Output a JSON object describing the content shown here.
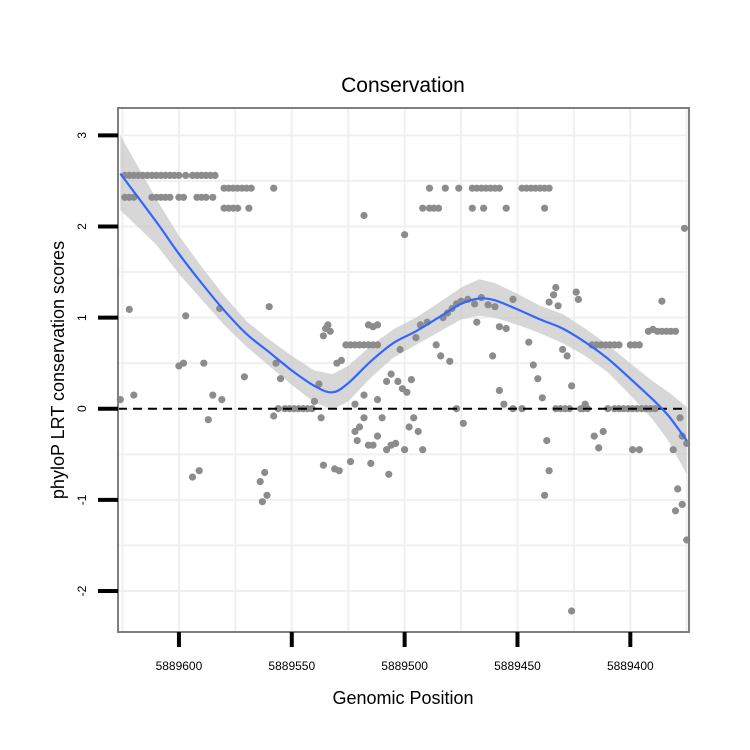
{
  "chart_data": {
    "type": "scatter",
    "title": "Conservation",
    "xlabel": "Genomic Position",
    "ylabel": "phyloP LRT conservation scores",
    "x_reversed": true,
    "xlim": [
      5889627,
      5889374
    ],
    "ylim": [
      -2.45,
      3.3
    ],
    "x_ticks": [
      5889600,
      5889550,
      5889500,
      5889450,
      5889400
    ],
    "x_tick_labels": [
      "5889600",
      "5889550",
      "5889500",
      "5889450",
      "5889400"
    ],
    "y_ticks": [
      -2,
      -1,
      0,
      1,
      2,
      3
    ],
    "y_tick_labels": [
      "-2",
      "-1",
      "0",
      "1",
      "2",
      "3"
    ],
    "reference_line": 0,
    "grid": true,
    "colors": {
      "points": "#8c8c8c",
      "smooth": "#3366ff",
      "ribbon": "#c9c9c9",
      "panel_border": "#7f7f7f",
      "grid": "#f0f0f0",
      "hline": "#000000"
    },
    "points": [
      {
        "x": 5889600,
        "y": 2.56
      },
      {
        "x": 5889597,
        "y": 2.56
      },
      {
        "x": 5889594,
        "y": 2.56
      },
      {
        "x": 5889592,
        "y": 2.56
      },
      {
        "x": 5889590,
        "y": 2.56
      },
      {
        "x": 5889588,
        "y": 2.56
      },
      {
        "x": 5889586,
        "y": 2.56
      },
      {
        "x": 5889584,
        "y": 2.56
      },
      {
        "x": 5889616,
        "y": 2.56
      },
      {
        "x": 5889614,
        "y": 2.56
      },
      {
        "x": 5889612,
        "y": 2.56
      },
      {
        "x": 5889610,
        "y": 2.56
      },
      {
        "x": 5889608,
        "y": 2.56
      },
      {
        "x": 5889606,
        "y": 2.56
      },
      {
        "x": 5889604,
        "y": 2.56
      },
      {
        "x": 5889602,
        "y": 2.56
      },
      {
        "x": 5889624,
        "y": 2.56
      },
      {
        "x": 5889622,
        "y": 2.56
      },
      {
        "x": 5889620,
        "y": 2.56
      },
      {
        "x": 5889618,
        "y": 2.56
      },
      {
        "x": 5889624,
        "y": 2.32
      },
      {
        "x": 5889622,
        "y": 2.32
      },
      {
        "x": 5889620,
        "y": 2.32
      },
      {
        "x": 5889612,
        "y": 2.32
      },
      {
        "x": 5889610,
        "y": 2.32
      },
      {
        "x": 5889608,
        "y": 2.32
      },
      {
        "x": 5889606,
        "y": 2.32
      },
      {
        "x": 5889604,
        "y": 2.32
      },
      {
        "x": 5889600,
        "y": 2.32
      },
      {
        "x": 5889598,
        "y": 2.32
      },
      {
        "x": 5889592,
        "y": 2.32
      },
      {
        "x": 5889590,
        "y": 2.32
      },
      {
        "x": 5889588,
        "y": 2.32
      },
      {
        "x": 5889585,
        "y": 2.32
      },
      {
        "x": 5889580,
        "y": 2.42
      },
      {
        "x": 5889578,
        "y": 2.42
      },
      {
        "x": 5889576,
        "y": 2.42
      },
      {
        "x": 5889574,
        "y": 2.42
      },
      {
        "x": 5889572,
        "y": 2.42
      },
      {
        "x": 5889570,
        "y": 2.42
      },
      {
        "x": 5889568,
        "y": 2.42
      },
      {
        "x": 5889558,
        "y": 2.42
      },
      {
        "x": 5889580,
        "y": 2.2
      },
      {
        "x": 5889578,
        "y": 2.2
      },
      {
        "x": 5889576,
        "y": 2.2
      },
      {
        "x": 5889574,
        "y": 2.2
      },
      {
        "x": 5889569,
        "y": 2.2
      },
      {
        "x": 5889518,
        "y": 2.12
      },
      {
        "x": 5889500,
        "y": 1.91
      },
      {
        "x": 5889492,
        "y": 2.2
      },
      {
        "x": 5889489,
        "y": 2.2
      },
      {
        "x": 5889487,
        "y": 2.2
      },
      {
        "x": 5889485,
        "y": 2.2
      },
      {
        "x": 5889470,
        "y": 2.2
      },
      {
        "x": 5889465,
        "y": 2.2
      },
      {
        "x": 5889455,
        "y": 2.2
      },
      {
        "x": 5889438,
        "y": 2.2
      },
      {
        "x": 5889489,
        "y": 2.42
      },
      {
        "x": 5889482,
        "y": 2.42
      },
      {
        "x": 5889476,
        "y": 2.42
      },
      {
        "x": 5889470,
        "y": 2.42
      },
      {
        "x": 5889468,
        "y": 2.42
      },
      {
        "x": 5889466,
        "y": 2.42
      },
      {
        "x": 5889464,
        "y": 2.42
      },
      {
        "x": 5889462,
        "y": 2.42
      },
      {
        "x": 5889460,
        "y": 2.42
      },
      {
        "x": 5889458,
        "y": 2.42
      },
      {
        "x": 5889448,
        "y": 2.42
      },
      {
        "x": 5889446,
        "y": 2.42
      },
      {
        "x": 5889444,
        "y": 2.42
      },
      {
        "x": 5889442,
        "y": 2.42
      },
      {
        "x": 5889440,
        "y": 2.42
      },
      {
        "x": 5889438,
        "y": 2.42
      },
      {
        "x": 5889436,
        "y": 2.42
      },
      {
        "x": 5889622,
        "y": 1.09
      },
      {
        "x": 5889597,
        "y": 1.02
      },
      {
        "x": 5889589,
        "y": 0.5
      },
      {
        "x": 5889582,
        "y": 1.1
      },
      {
        "x": 5889571,
        "y": 0.35
      },
      {
        "x": 5889560,
        "y": 1.12
      },
      {
        "x": 5889557,
        "y": 0.5
      },
      {
        "x": 5889555,
        "y": 0.33
      },
      {
        "x": 5889600,
        "y": 0.47
      },
      {
        "x": 5889598,
        "y": 0.5
      },
      {
        "x": 5889626,
        "y": 0.1
      },
      {
        "x": 5889620,
        "y": 0.15
      },
      {
        "x": 5889585,
        "y": 0.15
      },
      {
        "x": 5889581,
        "y": 0.1
      },
      {
        "x": 5889587,
        "y": -0.12
      },
      {
        "x": 5889558,
        "y": -0.08
      },
      {
        "x": 5889556,
        "y": 0.0
      },
      {
        "x": 5889553,
        "y": 0.0
      },
      {
        "x": 5889551,
        "y": 0.0
      },
      {
        "x": 5889549,
        "y": 0.0
      },
      {
        "x": 5889547,
        "y": 0.0
      },
      {
        "x": 5889545,
        "y": 0.0
      },
      {
        "x": 5889543,
        "y": 0.0
      },
      {
        "x": 5889541,
        "y": 0.0
      },
      {
        "x": 5889540,
        "y": 0.08
      },
      {
        "x": 5889538,
        "y": 0.27
      },
      {
        "x": 5889537,
        "y": -0.1
      },
      {
        "x": 5889564,
        "y": -0.8
      },
      {
        "x": 5889562,
        "y": -0.7
      },
      {
        "x": 5889561,
        "y": -0.95
      },
      {
        "x": 5889563,
        "y": -1.02
      },
      {
        "x": 5889594,
        "y": -0.75
      },
      {
        "x": 5889591,
        "y": -0.68
      },
      {
        "x": 5889536,
        "y": 0.8
      },
      {
        "x": 5889535,
        "y": 0.88
      },
      {
        "x": 5889534,
        "y": 0.92
      },
      {
        "x": 5889533,
        "y": 0.85
      },
      {
        "x": 5889530,
        "y": 0.5
      },
      {
        "x": 5889528,
        "y": 0.53
      },
      {
        "x": 5889526,
        "y": 0.7
      },
      {
        "x": 5889524,
        "y": 0.7
      },
      {
        "x": 5889522,
        "y": 0.7
      },
      {
        "x": 5889520,
        "y": 0.7
      },
      {
        "x": 5889518,
        "y": 0.7
      },
      {
        "x": 5889516,
        "y": 0.7
      },
      {
        "x": 5889514,
        "y": 0.7
      },
      {
        "x": 5889512,
        "y": 0.7
      },
      {
        "x": 5889516,
        "y": 0.92
      },
      {
        "x": 5889514,
        "y": 0.9
      },
      {
        "x": 5889512,
        "y": 0.92
      },
      {
        "x": 5889536,
        "y": -0.62
      },
      {
        "x": 5889531,
        "y": -0.66
      },
      {
        "x": 5889529,
        "y": -0.68
      },
      {
        "x": 5889524,
        "y": -0.58
      },
      {
        "x": 5889522,
        "y": -0.25
      },
      {
        "x": 5889520,
        "y": -0.2
      },
      {
        "x": 5889518,
        "y": -0.1
      },
      {
        "x": 5889516,
        "y": -0.4
      },
      {
        "x": 5889514,
        "y": -0.4
      },
      {
        "x": 5889512,
        "y": -0.3
      },
      {
        "x": 5889510,
        "y": -0.1
      },
      {
        "x": 5889508,
        "y": -0.45
      },
      {
        "x": 5889506,
        "y": -0.4
      },
      {
        "x": 5889504,
        "y": -0.38
      },
      {
        "x": 5889500,
        "y": -0.45
      },
      {
        "x": 5889498,
        "y": -0.2
      },
      {
        "x": 5889496,
        "y": -0.1
      },
      {
        "x": 5889494,
        "y": -0.25
      },
      {
        "x": 5889492,
        "y": -0.45
      },
      {
        "x": 5889521,
        "y": -0.35
      },
      {
        "x": 5889515,
        "y": -0.6
      },
      {
        "x": 5889507,
        "y": -0.72
      },
      {
        "x": 5889522,
        "y": 0.05
      },
      {
        "x": 5889518,
        "y": 0.15
      },
      {
        "x": 5889512,
        "y": 0.1
      },
      {
        "x": 5889508,
        "y": 0.3
      },
      {
        "x": 5889506,
        "y": 0.38
      },
      {
        "x": 5889503,
        "y": 0.3
      },
      {
        "x": 5889501,
        "y": 0.22
      },
      {
        "x": 5889499,
        "y": 0.18
      },
      {
        "x": 5889497,
        "y": 0.32
      },
      {
        "x": 5889502,
        "y": 0.65
      },
      {
        "x": 5889495,
        "y": 0.78
      },
      {
        "x": 5889493,
        "y": 0.92
      },
      {
        "x": 5889490,
        "y": 0.95
      },
      {
        "x": 5889486,
        "y": 0.7
      },
      {
        "x": 5889484,
        "y": 0.58
      },
      {
        "x": 5889480,
        "y": 0.52
      },
      {
        "x": 5889483,
        "y": 1.0
      },
      {
        "x": 5889481,
        "y": 1.05
      },
      {
        "x": 5889479,
        "y": 1.1
      },
      {
        "x": 5889477,
        "y": 1.15
      },
      {
        "x": 5889475,
        "y": 1.18
      },
      {
        "x": 5889472,
        "y": 1.2
      },
      {
        "x": 5889469,
        "y": 1.15
      },
      {
        "x": 5889466,
        "y": 1.22
      },
      {
        "x": 5889463,
        "y": 1.14
      },
      {
        "x": 5889460,
        "y": 1.12
      },
      {
        "x": 5889458,
        "y": 0.9
      },
      {
        "x": 5889455,
        "y": 0.88
      },
      {
        "x": 5889452,
        "y": 1.2
      },
      {
        "x": 5889477,
        "y": 0.0
      },
      {
        "x": 5889474,
        "y": -0.16
      },
      {
        "x": 5889468,
        "y": 0.95
      },
      {
        "x": 5889461,
        "y": 0.58
      },
      {
        "x": 5889458,
        "y": 0.2
      },
      {
        "x": 5889456,
        "y": 0.05
      },
      {
        "x": 5889452,
        "y": 0.0
      },
      {
        "x": 5889448,
        "y": 0.0
      },
      {
        "x": 5889445,
        "y": 0.73
      },
      {
        "x": 5889443,
        "y": 0.48
      },
      {
        "x": 5889441,
        "y": 0.33
      },
      {
        "x": 5889439,
        "y": 0.12
      },
      {
        "x": 5889436,
        "y": 1.17
      },
      {
        "x": 5889434,
        "y": 1.25
      },
      {
        "x": 5889433,
        "y": 1.33
      },
      {
        "x": 5889432,
        "y": 1.13
      },
      {
        "x": 5889428,
        "y": 0.58
      },
      {
        "x": 5889426,
        "y": 0.25
      },
      {
        "x": 5889424,
        "y": 1.28
      },
      {
        "x": 5889423,
        "y": 1.2
      },
      {
        "x": 5889422,
        "y": 0.0
      },
      {
        "x": 5889420,
        "y": 0.05
      },
      {
        "x": 5889430,
        "y": 0.65
      },
      {
        "x": 5889437,
        "y": -0.35
      },
      {
        "x": 5889436,
        "y": -0.68
      },
      {
        "x": 5889438,
        "y": -0.95
      },
      {
        "x": 5889426,
        "y": -2.22
      },
      {
        "x": 5889433,
        "y": 0.0
      },
      {
        "x": 5889431,
        "y": 0.0
      },
      {
        "x": 5889429,
        "y": 0.0
      },
      {
        "x": 5889427,
        "y": 0.0
      },
      {
        "x": 5889421,
        "y": 0.0
      },
      {
        "x": 5889419,
        "y": 0.0
      },
      {
        "x": 5889417,
        "y": 0.7
      },
      {
        "x": 5889415,
        "y": 0.7
      },
      {
        "x": 5889413,
        "y": 0.7
      },
      {
        "x": 5889411,
        "y": 0.7
      },
      {
        "x": 5889409,
        "y": 0.7
      },
      {
        "x": 5889407,
        "y": 0.7
      },
      {
        "x": 5889405,
        "y": 0.7
      },
      {
        "x": 5889400,
        "y": 0.7
      },
      {
        "x": 5889398,
        "y": 0.7
      },
      {
        "x": 5889396,
        "y": 0.7
      },
      {
        "x": 5889416,
        "y": -0.3
      },
      {
        "x": 5889414,
        "y": -0.43
      },
      {
        "x": 5889412,
        "y": -0.25
      },
      {
        "x": 5889410,
        "y": 0.0
      },
      {
        "x": 5889407,
        "y": 0.0
      },
      {
        "x": 5889405,
        "y": 0.0
      },
      {
        "x": 5889403,
        "y": 0.0
      },
      {
        "x": 5889401,
        "y": 0.0
      },
      {
        "x": 5889399,
        "y": 0.0
      },
      {
        "x": 5889397,
        "y": 0.0
      },
      {
        "x": 5889395,
        "y": 0.0
      },
      {
        "x": 5889393,
        "y": 0.0
      },
      {
        "x": 5889391,
        "y": 0.0
      },
      {
        "x": 5889389,
        "y": 0.0
      },
      {
        "x": 5889399,
        "y": -0.45
      },
      {
        "x": 5889396,
        "y": -0.45
      },
      {
        "x": 5889392,
        "y": 0.85
      },
      {
        "x": 5889390,
        "y": 0.87
      },
      {
        "x": 5889388,
        "y": 0.85
      },
      {
        "x": 5889386,
        "y": 0.85
      },
      {
        "x": 5889384,
        "y": 0.85
      },
      {
        "x": 5889382,
        "y": 0.85
      },
      {
        "x": 5889380,
        "y": 0.85
      },
      {
        "x": 5889386,
        "y": 1.18
      },
      {
        "x": 5889381,
        "y": -0.45
      },
      {
        "x": 5889378,
        "y": -0.1
      },
      {
        "x": 5889377,
        "y": -0.3
      },
      {
        "x": 5889379,
        "y": -0.88
      },
      {
        "x": 5889380,
        "y": -1.12
      },
      {
        "x": 5889377,
        "y": -1.05
      },
      {
        "x": 5889375,
        "y": -0.38
      },
      {
        "x": 5889375,
        "y": -1.44
      },
      {
        "x": 5889376,
        "y": 1.98
      }
    ],
    "smooth": [
      {
        "x": 5889626,
        "y": 2.58,
        "lo": 2.18,
        "hi": 3.0
      },
      {
        "x": 5889610,
        "y": 2.05,
        "lo": 1.8,
        "hi": 2.3
      },
      {
        "x": 5889600,
        "y": 1.7,
        "lo": 1.48,
        "hi": 1.9
      },
      {
        "x": 5889590,
        "y": 1.38,
        "lo": 1.2,
        "hi": 1.56
      },
      {
        "x": 5889580,
        "y": 1.08,
        "lo": 0.92,
        "hi": 1.24
      },
      {
        "x": 5889570,
        "y": 0.82,
        "lo": 0.68,
        "hi": 0.96
      },
      {
        "x": 5889560,
        "y": 0.62,
        "lo": 0.47,
        "hi": 0.76
      },
      {
        "x": 5889550,
        "y": 0.42,
        "lo": 0.26,
        "hi": 0.58
      },
      {
        "x": 5889540,
        "y": 0.25,
        "lo": 0.07,
        "hi": 0.42
      },
      {
        "x": 5889532,
        "y": 0.18,
        "lo": -0.01,
        "hi": 0.38
      },
      {
        "x": 5889525,
        "y": 0.28,
        "lo": 0.08,
        "hi": 0.47
      },
      {
        "x": 5889515,
        "y": 0.52,
        "lo": 0.34,
        "hi": 0.69
      },
      {
        "x": 5889505,
        "y": 0.72,
        "lo": 0.56,
        "hi": 0.87
      },
      {
        "x": 5889495,
        "y": 0.85,
        "lo": 0.7,
        "hi": 1.0
      },
      {
        "x": 5889485,
        "y": 1.0,
        "lo": 0.84,
        "hi": 1.16
      },
      {
        "x": 5889475,
        "y": 1.15,
        "lo": 0.98,
        "hi": 1.33
      },
      {
        "x": 5889467,
        "y": 1.21,
        "lo": 1.02,
        "hi": 1.42
      },
      {
        "x": 5889460,
        "y": 1.19,
        "lo": 1.0,
        "hi": 1.38
      },
      {
        "x": 5889450,
        "y": 1.09,
        "lo": 0.92,
        "hi": 1.26
      },
      {
        "x": 5889440,
        "y": 0.98,
        "lo": 0.83,
        "hi": 1.13
      },
      {
        "x": 5889430,
        "y": 0.88,
        "lo": 0.72,
        "hi": 1.04
      },
      {
        "x": 5889420,
        "y": 0.73,
        "lo": 0.58,
        "hi": 0.88
      },
      {
        "x": 5889410,
        "y": 0.55,
        "lo": 0.4,
        "hi": 0.7
      },
      {
        "x": 5889400,
        "y": 0.33,
        "lo": 0.15,
        "hi": 0.5
      },
      {
        "x": 5889390,
        "y": 0.1,
        "lo": -0.12,
        "hi": 0.3
      },
      {
        "x": 5889383,
        "y": -0.08,
        "lo": -0.36,
        "hi": 0.18
      },
      {
        "x": 5889375,
        "y": -0.35,
        "lo": -0.72,
        "hi": 0.02
      }
    ]
  }
}
